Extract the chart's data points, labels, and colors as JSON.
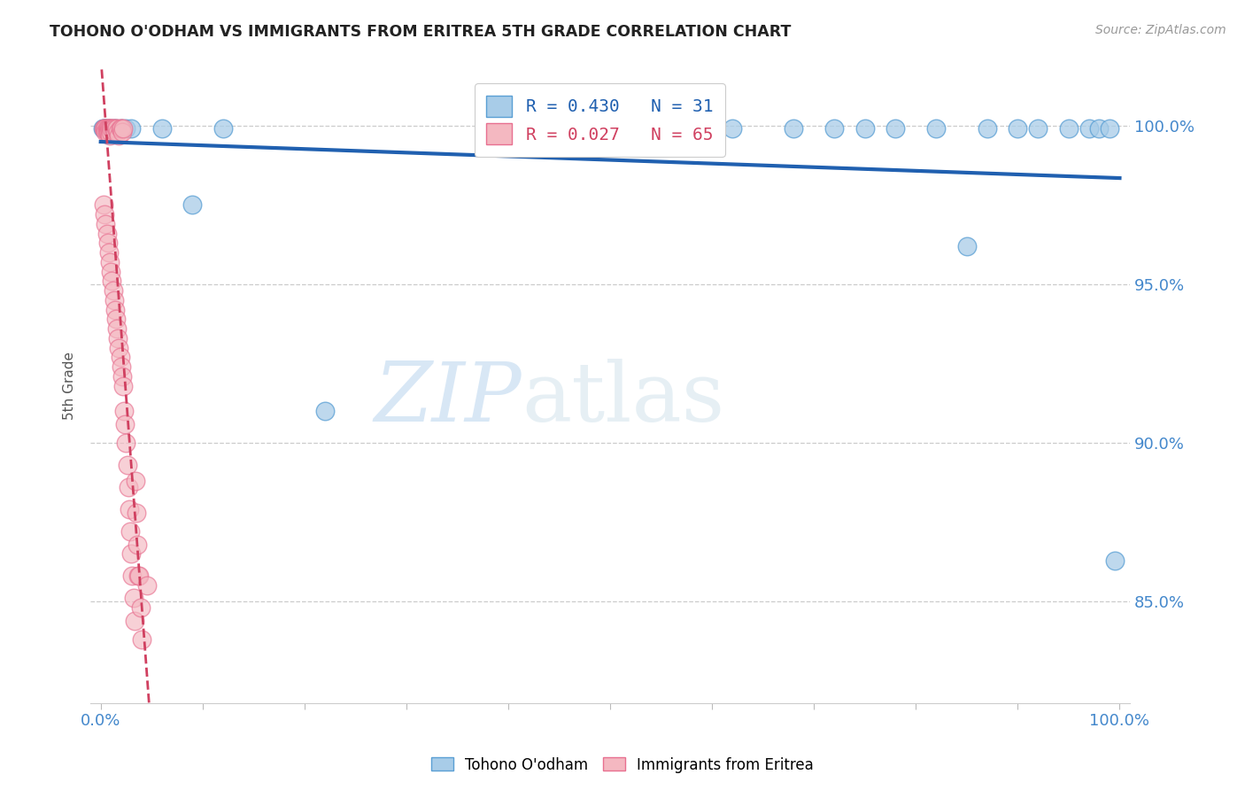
{
  "title": "TOHONO O'ODHAM VS IMMIGRANTS FROM ERITREA 5TH GRADE CORRELATION CHART",
  "source": "Source: ZipAtlas.com",
  "ylabel": "5th Grade",
  "ylim": [
    0.818,
    1.018
  ],
  "xlim": [
    -0.01,
    1.01
  ],
  "blue_label": "Tohono O'odham",
  "pink_label": "Immigrants from Eritrea",
  "blue_R": 0.43,
  "blue_N": 31,
  "pink_R": 0.027,
  "pink_N": 65,
  "blue_color": "#a8cce8",
  "pink_color": "#f4b8c1",
  "blue_edge_color": "#5a9fd4",
  "pink_edge_color": "#e87090",
  "blue_line_color": "#2060b0",
  "pink_line_color": "#d04060",
  "watermark_zip": "ZIP",
  "watermark_atlas": "atlas",
  "ytick_positions": [
    0.85,
    0.9,
    0.95,
    1.0
  ],
  "ytick_labels": [
    "85.0%",
    "90.0%",
    "95.0%",
    "100.0%"
  ],
  "xtick_positions": [
    0.0,
    0.1,
    0.2,
    0.3,
    0.4,
    0.5,
    0.6,
    0.7,
    0.8,
    0.9,
    1.0
  ],
  "blue_x": [
    0.002,
    0.003,
    0.004,
    0.005,
    0.007,
    0.009,
    0.012,
    0.015,
    0.02,
    0.025,
    0.03,
    0.06,
    0.09,
    0.12,
    0.22,
    0.55,
    0.62,
    0.68,
    0.72,
    0.75,
    0.78,
    0.82,
    0.85,
    0.87,
    0.9,
    0.92,
    0.95,
    0.97,
    0.98,
    0.99,
    0.995
  ],
  "blue_y": [
    0.999,
    0.999,
    0.999,
    0.999,
    0.999,
    0.999,
    0.999,
    0.999,
    0.999,
    0.999,
    0.999,
    0.999,
    0.975,
    0.999,
    0.91,
    0.999,
    0.999,
    0.999,
    0.999,
    0.999,
    0.999,
    0.999,
    0.962,
    0.999,
    0.999,
    0.999,
    0.999,
    0.999,
    0.999,
    0.999,
    0.863
  ],
  "pink_x": [
    0.003,
    0.004,
    0.005,
    0.005,
    0.006,
    0.006,
    0.007,
    0.007,
    0.008,
    0.008,
    0.009,
    0.009,
    0.01,
    0.01,
    0.011,
    0.012,
    0.013,
    0.014,
    0.015,
    0.016,
    0.017,
    0.018,
    0.019,
    0.02,
    0.021,
    0.022,
    0.003,
    0.004,
    0.005,
    0.006,
    0.007,
    0.008,
    0.009,
    0.01,
    0.011,
    0.012,
    0.013,
    0.014,
    0.015,
    0.016,
    0.017,
    0.018,
    0.019,
    0.02,
    0.021,
    0.022,
    0.023,
    0.024,
    0.025,
    0.026,
    0.027,
    0.028,
    0.029,
    0.03,
    0.031,
    0.032,
    0.033,
    0.034,
    0.035,
    0.036,
    0.037,
    0.038,
    0.039,
    0.04,
    0.045
  ],
  "pink_y": [
    0.999,
    0.999,
    0.999,
    0.998,
    0.999,
    0.998,
    0.999,
    0.998,
    0.999,
    0.998,
    0.999,
    0.997,
    0.999,
    0.998,
    0.999,
    0.999,
    0.999,
    0.998,
    0.999,
    0.999,
    0.998,
    0.997,
    0.999,
    0.999,
    0.998,
    0.999,
    0.975,
    0.972,
    0.969,
    0.966,
    0.963,
    0.96,
    0.957,
    0.954,
    0.951,
    0.948,
    0.945,
    0.942,
    0.939,
    0.936,
    0.933,
    0.93,
    0.927,
    0.924,
    0.921,
    0.918,
    0.91,
    0.906,
    0.9,
    0.893,
    0.886,
    0.879,
    0.872,
    0.865,
    0.858,
    0.851,
    0.844,
    0.888,
    0.878,
    0.868,
    0.858,
    0.858,
    0.848,
    0.838,
    0.855
  ]
}
